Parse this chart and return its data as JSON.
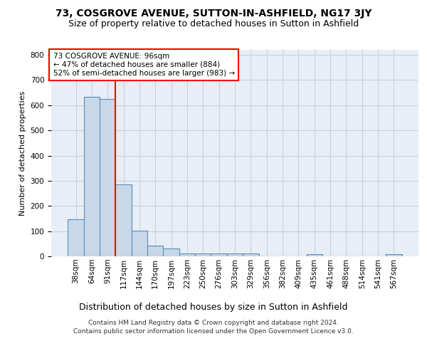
{
  "title1": "73, COSGROVE AVENUE, SUTTON-IN-ASHFIELD, NG17 3JY",
  "title2": "Size of property relative to detached houses in Sutton in Ashfield",
  "xlabel": "Distribution of detached houses by size in Sutton in Ashfield",
  "ylabel": "Number of detached properties",
  "categories": [
    "38sqm",
    "64sqm",
    "91sqm",
    "117sqm",
    "144sqm",
    "170sqm",
    "197sqm",
    "223sqm",
    "250sqm",
    "276sqm",
    "303sqm",
    "329sqm",
    "356sqm",
    "382sqm",
    "409sqm",
    "435sqm",
    "461sqm",
    "488sqm",
    "514sqm",
    "541sqm",
    "567sqm"
  ],
  "values": [
    148,
    632,
    624,
    287,
    101,
    43,
    30,
    12,
    12,
    12,
    10,
    10,
    0,
    0,
    0,
    8,
    0,
    0,
    0,
    0,
    8
  ],
  "bar_color": "#c8d8e8",
  "bar_edge_color": "#5b8db8",
  "grid_color": "#c8d0e0",
  "background_color": "#e8eef5",
  "annotation_box_text": "73 COSGROVE AVENUE: 96sqm\n← 47% of detached houses are smaller (884)\n52% of semi-detached houses are larger (983) →",
  "annotation_box_color": "white",
  "annotation_box_edge_color": "red",
  "vline_x_idx": 2,
  "vline_color": "red",
  "ylim": [
    0,
    820
  ],
  "yticks": [
    0,
    100,
    200,
    300,
    400,
    500,
    600,
    700,
    800
  ],
  "footer_line1": "Contains HM Land Registry data © Crown copyright and database right 2024.",
  "footer_line2": "Contains public sector information licensed under the Open Government Licence v3.0.",
  "title1_fontsize": 10,
  "title2_fontsize": 9,
  "ylabel_fontsize": 8,
  "xlabel_fontsize": 9,
  "tick_fontsize": 7.5,
  "footer_fontsize": 6.5,
  "annot_fontsize": 7.5
}
